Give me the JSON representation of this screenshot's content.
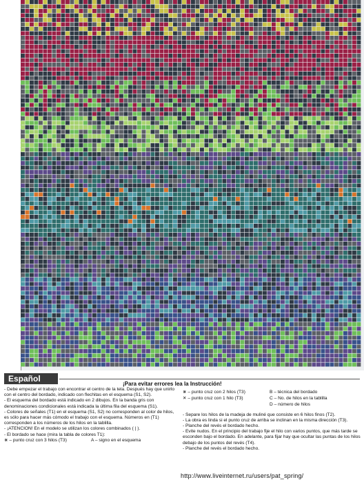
{
  "bottom": {
    "language": "Español",
    "title": "¡Para evitar errores lea la Instrucción!",
    "left_column": [
      "- Debe empezar el trabajo con encontrar el centro de la tela. Después hay que unirlo con el centro del bordado, indicado con flechitas en el esquema (S1, S2).",
      "- El esquema del bordado está indicado en 2 dibujos. En la banda gris con denominaciones condicionales está indicada la última fila del esquema (S1).",
      "- Colores de señales (T1) en el esquema (S1, S2) no corresponden al color de hilos, es sólo para hacer más cómodo el trabajo con el esquema. Números en (T1) corresponden a los números de los hilos en la tablilla.",
      "- ¡ATENCION! En el modelo se utilizan los colores combinados ( | ).",
      "- El bordado se hace (mira la tabla de colores T1):"
    ],
    "legend": [
      "⋇ – punto cruz con 3 hilos (T3)",
      "A – signo en el esquema",
      "⋇ – punto cruz con 2 hilos (T3)",
      "B – técnica del bordado",
      "✕ – punto cruz con 1 hilo (T3)",
      "C – No. de hilos en la tablilla",
      "",
      "D – número de hilos"
    ],
    "right_column": [
      "- Separe los hilos de la madeja de muliné que consiste en 6 hilos finos (T2).",
      "- La obra es linda si el punto cruz de arriba se inclinan en la misma dirección (T3).",
      "- Planche del revés el bordado hecho.",
      "- Evite nudos. En el principio del trabajo fije el hilo con varios puntos, que más tarde se esconden bajo el bordado. En adelante, para fijar hay que ocultar las puntas de los hilos debajo de los puntos del revés (T4).",
      "- Planche del revés el bordado hecho."
    ],
    "watermark": "http://www.liveinternet.ru/users/pat_spring/"
  },
  "palette": {
    "dark": "#2f3a45",
    "teal": "#2f6e6c",
    "green": "#6fbf5a",
    "light_green": "#a8d36f",
    "purple": "#5d4a8a",
    "magenta": "#9a2046",
    "grey": "#5c6066",
    "blue": "#39528a",
    "yellow": "#c8c24a",
    "orange": "#d8742a",
    "cyan": "#4f9aa6"
  }
}
